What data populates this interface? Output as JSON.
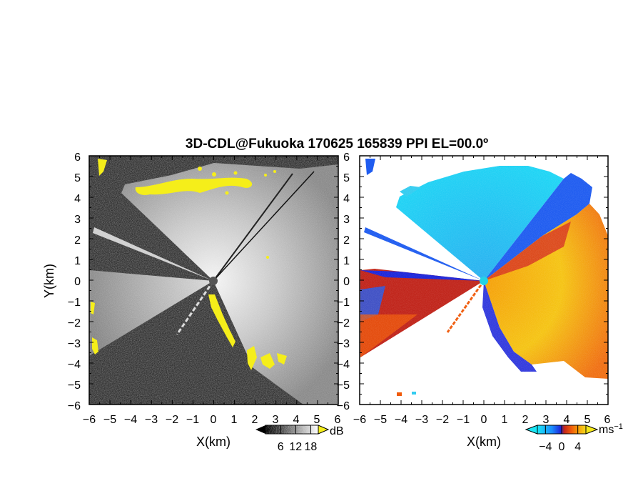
{
  "chart_data": [
    {
      "type": "heatmap",
      "title": "3D-CDL@Fukuoka 170625 165839 PPI EL=00.0º",
      "xlabel": "X(km)",
      "ylabel": "Y(km)",
      "xlim": [
        -6,
        6
      ],
      "ylim": [
        -6,
        6
      ],
      "x_ticks": [
        "−6",
        "−5",
        "−4",
        "−3",
        "−2",
        "−1",
        "0",
        "1",
        "2",
        "3",
        "4",
        "5",
        "6"
      ],
      "y_ticks": [
        "6",
        "5",
        "4",
        "3",
        "2",
        "1",
        "0",
        "−1",
        "−2",
        "−3",
        "−4",
        "−5",
        "−6"
      ],
      "colorbar": {
        "unit": "dB",
        "ticks": [
          6,
          12,
          18
        ],
        "range": [
          0,
          21
        ],
        "colormap": "grayscale",
        "overflow_color": "#f5ee1a"
      }
    },
    {
      "type": "heatmap",
      "xlabel": "X(km)",
      "xlim": [
        -6,
        6
      ],
      "ylim": [
        -6,
        6
      ],
      "x_ticks": [
        "−6",
        "−5",
        "−4",
        "−3",
        "−2",
        "−1",
        "0",
        "1",
        "2",
        "3",
        "4",
        "5",
        "6"
      ],
      "y_ticks": [
        "6",
        "5",
        "4",
        "3",
        "2",
        "1",
        "0",
        "−1",
        "−2",
        "−3",
        "−4",
        "−5",
        "−6"
      ],
      "colorbar": {
        "unit": "ms",
        "unit_exponent": "−1",
        "ticks": [
          -4,
          0,
          4
        ],
        "range": [
          -6,
          6
        ],
        "colormap": [
          "#19e6f5",
          "#1a8cff",
          "#1c25d9",
          "#c0241a",
          "#f05a0a",
          "#f5a00a",
          "#f5d81a"
        ]
      }
    }
  ],
  "colors": {
    "cyan": "#33ccf0",
    "blue": "#1f5cf0",
    "dark_blue": "#1c25d9",
    "red": "#d7361e",
    "orange": "#f58a14",
    "yellow": "#f5ee1a",
    "center_marker_left": "#555555",
    "center_marker_right": "#22d3e6"
  }
}
